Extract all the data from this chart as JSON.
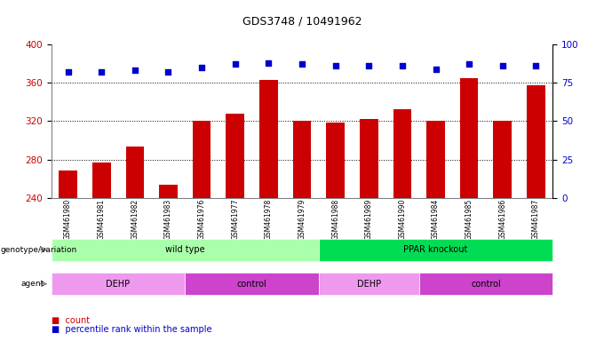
{
  "title": "GDS3748 / 10491962",
  "samples": [
    "GSM461980",
    "GSM461981",
    "GSM461982",
    "GSM461983",
    "GSM461976",
    "GSM461977",
    "GSM461978",
    "GSM461979",
    "GSM461988",
    "GSM461989",
    "GSM461990",
    "GSM461984",
    "GSM461985",
    "GSM461986",
    "GSM461987"
  ],
  "counts": [
    268,
    277,
    293,
    254,
    320,
    328,
    363,
    320,
    318,
    322,
    332,
    320,
    365,
    320,
    357
  ],
  "percentiles": [
    82,
    82,
    83,
    82,
    85,
    87,
    88,
    87,
    86,
    86,
    86,
    84,
    87,
    86,
    86
  ],
  "ylim_left": [
    240,
    400
  ],
  "ylim_right": [
    0,
    100
  ],
  "yticks_left": [
    240,
    280,
    320,
    360,
    400
  ],
  "yticks_right": [
    0,
    25,
    50,
    75,
    100
  ],
  "bar_color": "#cc0000",
  "dot_color": "#0000cc",
  "genotype_groups": [
    {
      "label": "wild type",
      "start": 0,
      "end": 8,
      "color": "#aaffaa"
    },
    {
      "label": "PPAR knockout",
      "start": 8,
      "end": 15,
      "color": "#00dd55"
    }
  ],
  "agent_groups": [
    {
      "label": "DEHP",
      "start": 0,
      "end": 4,
      "color": "#ee99ee"
    },
    {
      "label": "control",
      "start": 4,
      "end": 8,
      "color": "#cc44cc"
    },
    {
      "label": "DEHP",
      "start": 8,
      "end": 11,
      "color": "#ee99ee"
    },
    {
      "label": "control",
      "start": 11,
      "end": 15,
      "color": "#cc44cc"
    }
  ],
  "left_label_color": "#cc0000",
  "right_label_color": "#0000cc"
}
